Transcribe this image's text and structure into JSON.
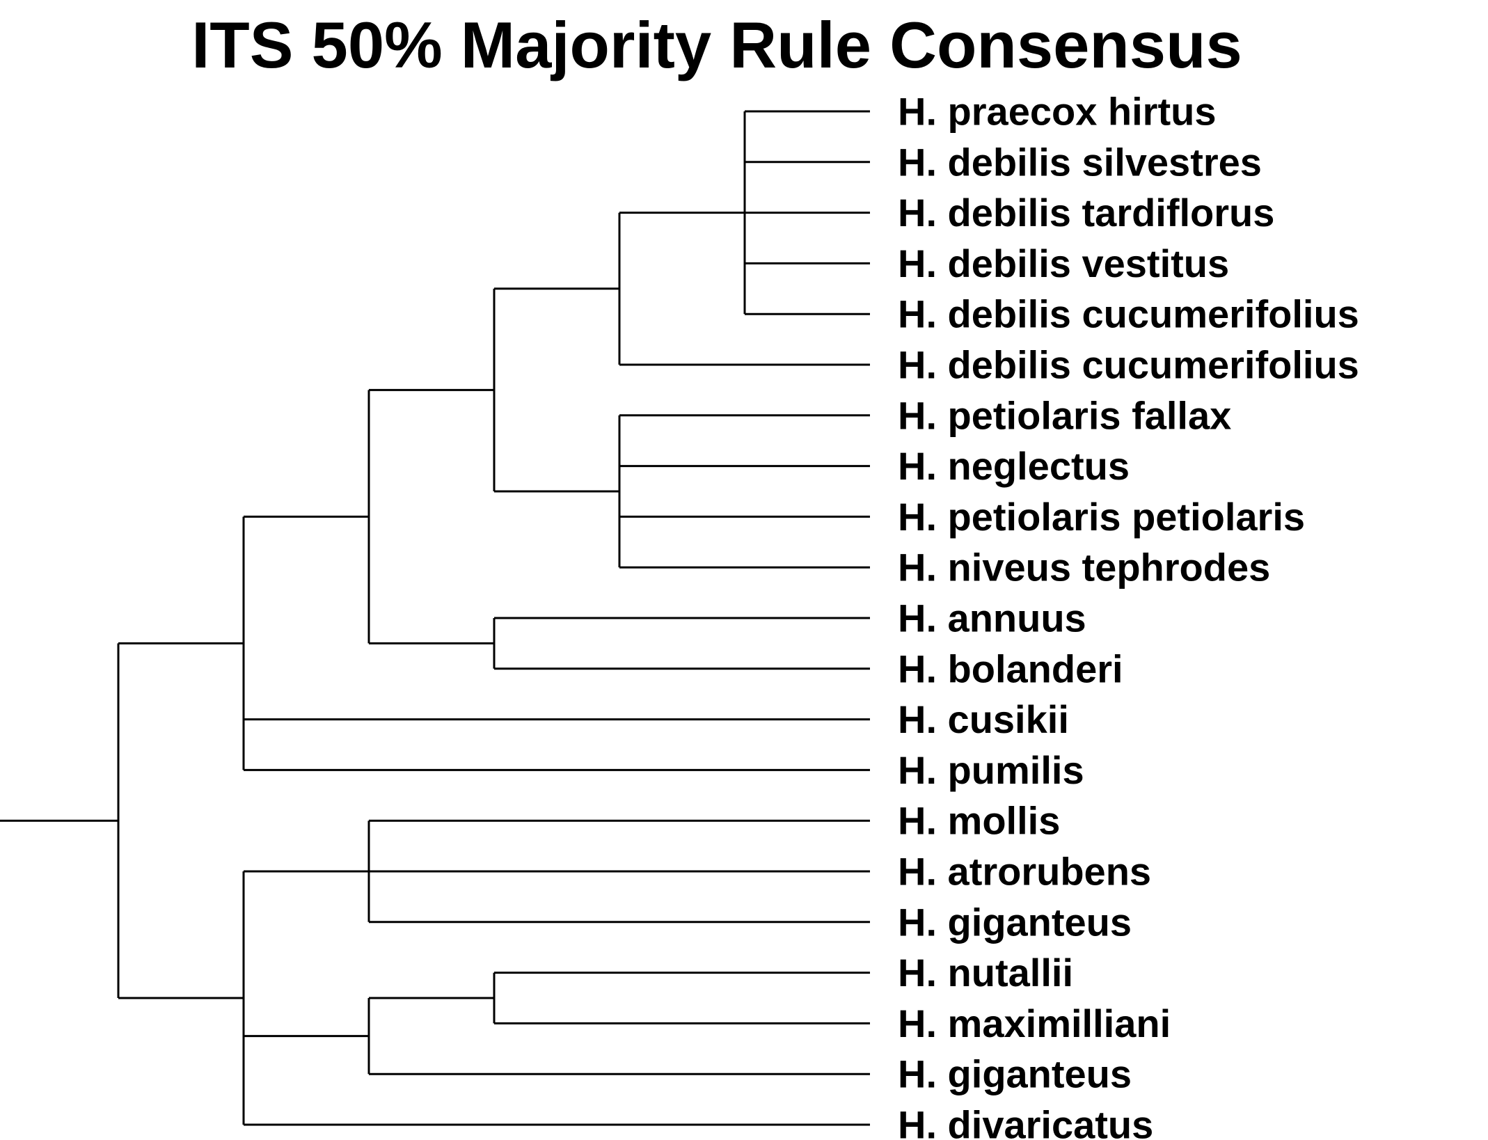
{
  "title": "ITS 50% Majority Rule Consensus",
  "line_color": "#000000",
  "taxa": [
    "H. praecox hirtus",
    "H. debilis silvestres",
    "H. debilis tardiflorus",
    "H. debilis vestitus",
    "H. debilis cucumerifolius",
    "H. debilis cucumerifolius",
    "H. petiolaris fallax",
    "H. neglectus",
    "H. petiolaris petiolaris",
    "H. niveus tephrodes",
    "H. annuus",
    "H. bolanderi",
    "H. cusikii",
    "H. pumilis",
    "H. mollis",
    "H. atrorubens",
    "H. giganteus",
    "H. nutallii",
    "H. maximilliani",
    "H. giganteus",
    "H. divaricatus"
  ],
  "tree": {
    "children": [
      {
        "children": [
          {
            "children": [
              {
                "children": [
                  {
                    "children": [
                      {
                        "children": [
                          0,
                          1,
                          2,
                          3,
                          4
                        ]
                      },
                      5
                    ]
                  },
                  {
                    "children": [
                      6,
                      7,
                      8,
                      9
                    ]
                  }
                ]
              },
              {
                "children": [
                  10,
                  11
                ]
              }
            ]
          },
          12,
          13
        ]
      },
      {
        "children": [
          {
            "children": [
              14,
              15,
              16
            ]
          },
          {
            "children": [
              {
                "children": [
                  17,
                  18
                ]
              },
              19
            ]
          },
          20
        ]
      }
    ]
  }
}
